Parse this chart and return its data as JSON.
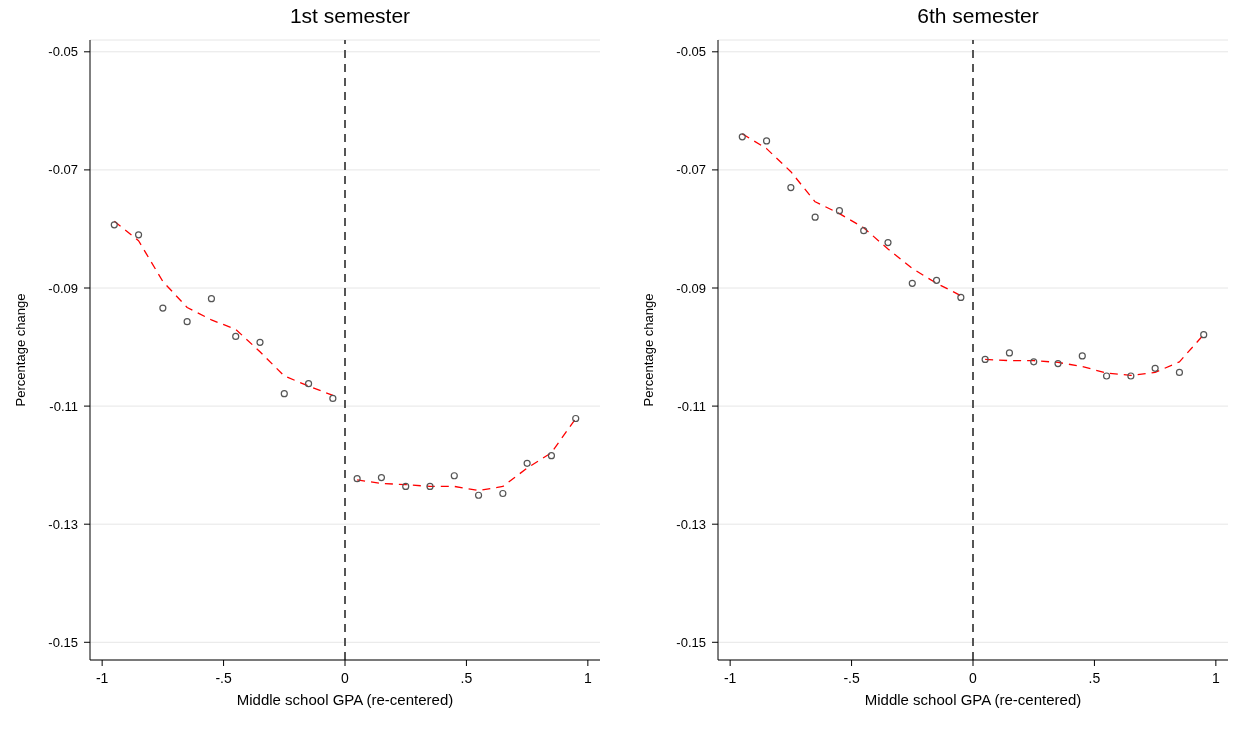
{
  "chart_data": [
    {
      "type": "scatter",
      "title": "1st semester",
      "xlabel": "Middle school GPA (re-centered)",
      "ylabel": "Percentage change",
      "xlim": [
        -1.05,
        1.05
      ],
      "ylim": [
        -0.153,
        -0.048
      ],
      "xticks": [
        {
          "value": -1,
          "label": "-1"
        },
        {
          "value": -0.5,
          "label": "-.5"
        },
        {
          "value": 0,
          "label": "0"
        },
        {
          "value": 0.5,
          "label": ".5"
        },
        1
      ],
      "yticks": [
        -0.05,
        -0.07,
        -0.09,
        -0.11,
        -0.13,
        -0.15
      ],
      "grid": "y",
      "ref_lines": [
        {
          "axis": "x",
          "value": 0,
          "color": "#555555",
          "line_style": "dashed"
        }
      ],
      "series": [
        {
          "type": "scatter",
          "marker": "circle",
          "color": "#555555",
          "x": [
            -0.95,
            -0.85,
            -0.75,
            -0.65,
            -0.55,
            -0.45,
            -0.35,
            -0.25,
            -0.15,
            -0.05,
            0.05,
            0.15,
            0.25,
            0.35,
            0.45,
            0.55,
            0.65,
            0.75,
            0.85,
            0.95
          ],
          "values": [
            -0.0793,
            -0.081,
            -0.0934,
            -0.0957,
            -0.0918,
            -0.0982,
            -0.0992,
            -0.1079,
            -0.1062,
            -0.1087,
            -0.1223,
            -0.1221,
            -0.1236,
            -0.1236,
            -0.1218,
            -0.1251,
            -0.1248,
            -0.1197,
            -0.1184,
            -0.1121
          ]
        },
        {
          "type": "line",
          "marker": "none",
          "line_style": "dashed",
          "color": "#ff0000",
          "x": [
            -0.95,
            -0.85,
            -0.75,
            -0.65,
            -0.55,
            -0.45,
            -0.35,
            -0.25,
            -0.15,
            -0.05
          ],
          "values": [
            -0.0787,
            -0.082,
            -0.0889,
            -0.0933,
            -0.0954,
            -0.097,
            -0.1008,
            -0.1049,
            -0.1066,
            -0.1082
          ]
        },
        {
          "type": "line",
          "marker": "none",
          "line_style": "dashed",
          "color": "#ff0000",
          "x": [
            0.05,
            0.15,
            0.25,
            0.35,
            0.45,
            0.55,
            0.65,
            0.75,
            0.85,
            0.95
          ],
          "values": [
            -0.1225,
            -0.1231,
            -0.1233,
            -0.1236,
            -0.1236,
            -0.1243,
            -0.1236,
            -0.1205,
            -0.1179,
            -0.1121
          ]
        }
      ]
    },
    {
      "type": "scatter",
      "title": "6th semester",
      "xlabel": "Middle school GPA (re-centered)",
      "ylabel": "Percentage change",
      "xlim": [
        -1.05,
        1.05
      ],
      "ylim": [
        -0.153,
        -0.048
      ],
      "xticks": [
        {
          "value": -1,
          "label": "-1"
        },
        {
          "value": -0.5,
          "label": "-.5"
        },
        {
          "value": 0,
          "label": "0"
        },
        {
          "value": 0.5,
          "label": ".5"
        },
        1
      ],
      "yticks": [
        -0.05,
        -0.07,
        -0.09,
        -0.11,
        -0.13,
        -0.15
      ],
      "grid": "y",
      "ref_lines": [
        {
          "axis": "x",
          "value": 0,
          "color": "#555555",
          "line_style": "dashed"
        }
      ],
      "series": [
        {
          "type": "scatter",
          "marker": "circle",
          "color": "#555555",
          "x": [
            -0.95,
            -0.85,
            -0.75,
            -0.65,
            -0.55,
            -0.45,
            -0.35,
            -0.25,
            -0.15,
            -0.05,
            0.05,
            0.15,
            0.25,
            0.35,
            0.45,
            0.55,
            0.65,
            0.75,
            0.85,
            0.95
          ],
          "values": [
            -0.0644,
            -0.0651,
            -0.073,
            -0.078,
            -0.0769,
            -0.0803,
            -0.0823,
            -0.0892,
            -0.0887,
            -0.0916,
            -0.1021,
            -0.101,
            -0.1025,
            -0.1028,
            -0.1015,
            -0.1049,
            -0.1049,
            -0.1036,
            -0.1043,
            -0.0979
          ]
        },
        {
          "type": "line",
          "marker": "none",
          "line_style": "dashed",
          "color": "#ff0000",
          "x": [
            -0.95,
            -0.85,
            -0.75,
            -0.65,
            -0.55,
            -0.45,
            -0.35,
            -0.25,
            -0.15,
            -0.05
          ],
          "values": [
            -0.0639,
            -0.0664,
            -0.0703,
            -0.0754,
            -0.0774,
            -0.0798,
            -0.0834,
            -0.0867,
            -0.0892,
            -0.0913
          ]
        },
        {
          "type": "line",
          "marker": "none",
          "line_style": "dashed",
          "color": "#ff0000",
          "x": [
            0.05,
            0.15,
            0.25,
            0.35,
            0.45,
            0.55,
            0.65,
            0.75,
            0.85,
            0.95
          ],
          "values": [
            -0.1021,
            -0.1023,
            -0.1023,
            -0.1026,
            -0.1033,
            -0.1044,
            -0.1048,
            -0.1043,
            -0.1025,
            -0.0979
          ]
        }
      ]
    }
  ]
}
